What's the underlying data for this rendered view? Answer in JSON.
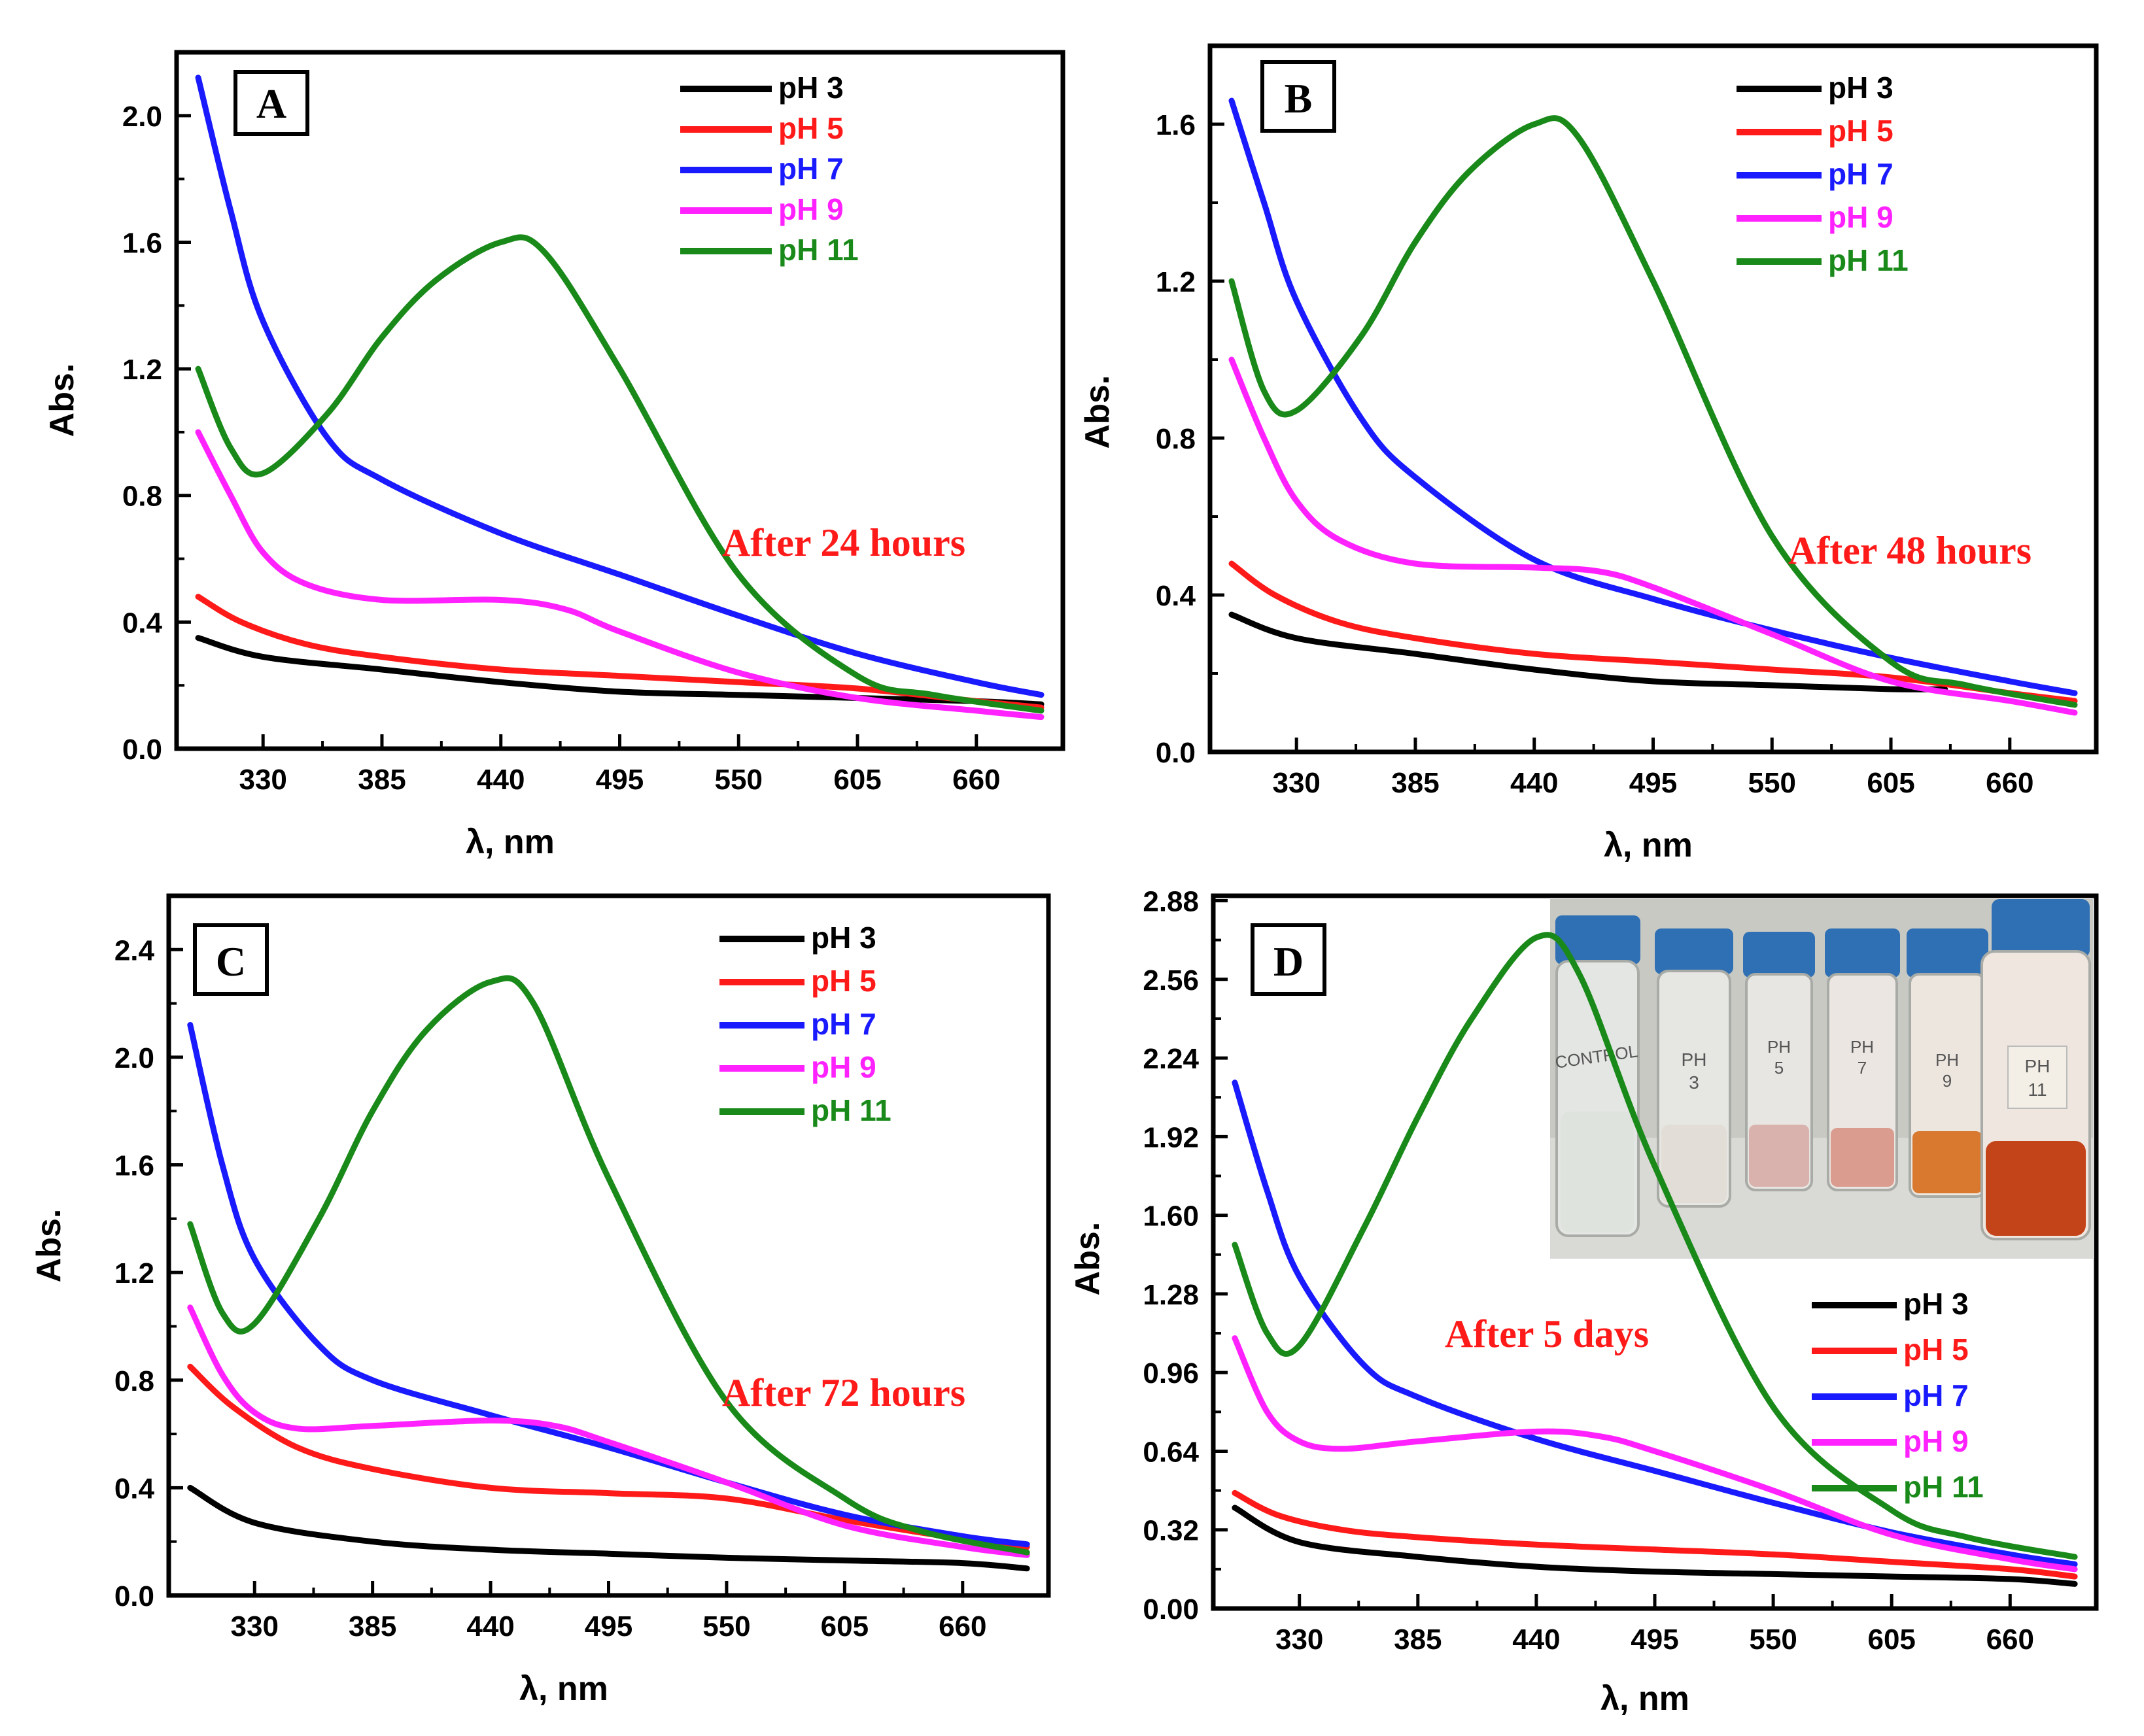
{
  "figure": {
    "series_colors": {
      "pH 3": "#000000",
      "pH 5": "#ff1a1a",
      "pH 7": "#1a1aff",
      "pH 9": "#ff22ff",
      "pH 11": "#198a19"
    },
    "label_red": "#ff1a1a"
  },
  "chart_data": [
    {
      "type": "line",
      "panel_label": "A",
      "annotation": "After 24 hours",
      "xlabel": "λ, nm",
      "ylabel": "Abs.",
      "xlim": [
        290,
        700
      ],
      "ylim": [
        0,
        2.2
      ],
      "xticks": [
        330,
        385,
        440,
        495,
        550,
        605,
        660
      ],
      "yticks": [
        0.0,
        0.4,
        0.8,
        1.2,
        1.6,
        2.0
      ],
      "ytick_labels": [
        "0.0",
        "0.4",
        "0.8",
        "1.2",
        "1.6",
        "2.0"
      ],
      "legend": [
        "pH 3",
        "pH 5",
        "pH 7",
        "pH 9",
        "pH 11"
      ],
      "legend_position": "top-right",
      "series": [
        {
          "name": "pH 3",
          "x": [
            300,
            330,
            385,
            440,
            495,
            550,
            605,
            660,
            690
          ],
          "y": [
            0.35,
            0.29,
            0.25,
            0.21,
            0.18,
            0.17,
            0.16,
            0.15,
            0.14
          ]
        },
        {
          "name": "pH 5",
          "x": [
            300,
            320,
            350,
            385,
            440,
            495,
            550,
            605,
            660,
            690
          ],
          "y": [
            0.48,
            0.4,
            0.33,
            0.29,
            0.25,
            0.23,
            0.21,
            0.19,
            0.15,
            0.13
          ]
        },
        {
          "name": "pH 7",
          "x": [
            300,
            315,
            330,
            360,
            385,
            440,
            495,
            550,
            605,
            660,
            690
          ],
          "y": [
            2.12,
            1.7,
            1.35,
            0.98,
            0.85,
            0.68,
            0.55,
            0.42,
            0.3,
            0.21,
            0.17
          ]
        },
        {
          "name": "pH 9",
          "x": [
            300,
            315,
            330,
            350,
            385,
            440,
            470,
            495,
            550,
            605,
            660,
            690
          ],
          "y": [
            1.0,
            0.8,
            0.62,
            0.52,
            0.47,
            0.47,
            0.44,
            0.37,
            0.24,
            0.16,
            0.12,
            0.1
          ]
        },
        {
          "name": "pH 11",
          "x": [
            300,
            315,
            330,
            360,
            385,
            410,
            440,
            460,
            495,
            550,
            605,
            640,
            690
          ],
          "y": [
            1.2,
            0.95,
            0.87,
            1.06,
            1.3,
            1.48,
            1.6,
            1.57,
            1.2,
            0.55,
            0.23,
            0.17,
            0.12
          ]
        }
      ]
    },
    {
      "type": "line",
      "panel_label": "B",
      "annotation": "After 48 hours",
      "xlabel": "λ, nm",
      "ylabel": "Abs.",
      "xlim": [
        290,
        700
      ],
      "ylim": [
        0,
        1.8
      ],
      "xticks": [
        330,
        385,
        440,
        495,
        550,
        605,
        660
      ],
      "yticks": [
        0.0,
        0.4,
        0.8,
        1.2,
        1.6
      ],
      "ytick_labels": [
        "0.0",
        "0.4",
        "0.8",
        "1.2",
        "1.6"
      ],
      "legend": [
        "pH 3",
        "pH 5",
        "pH 7",
        "pH 9",
        "pH 11"
      ],
      "legend_position": "top-right",
      "series": [
        {
          "name": "pH 3",
          "x": [
            300,
            330,
            385,
            440,
            495,
            550,
            605,
            630
          ],
          "y": [
            0.35,
            0.29,
            0.25,
            0.21,
            0.18,
            0.17,
            0.16,
            0.16
          ]
        },
        {
          "name": "pH 5",
          "x": [
            300,
            320,
            350,
            385,
            440,
            495,
            550,
            605,
            660,
            690
          ],
          "y": [
            0.48,
            0.4,
            0.33,
            0.29,
            0.25,
            0.23,
            0.21,
            0.19,
            0.15,
            0.13
          ]
        },
        {
          "name": "pH 7",
          "x": [
            300,
            315,
            330,
            360,
            385,
            440,
            495,
            550,
            605,
            660,
            690
          ],
          "y": [
            1.66,
            1.4,
            1.15,
            0.85,
            0.7,
            0.49,
            0.39,
            0.31,
            0.24,
            0.18,
            0.15
          ]
        },
        {
          "name": "pH 9",
          "x": [
            300,
            315,
            330,
            350,
            385,
            440,
            470,
            495,
            550,
            605,
            660,
            690
          ],
          "y": [
            1.0,
            0.8,
            0.64,
            0.54,
            0.48,
            0.47,
            0.46,
            0.42,
            0.3,
            0.18,
            0.13,
            0.1
          ]
        },
        {
          "name": "pH 11",
          "x": [
            300,
            315,
            330,
            360,
            385,
            410,
            440,
            460,
            495,
            550,
            605,
            640,
            690
          ],
          "y": [
            1.2,
            0.92,
            0.87,
            1.06,
            1.3,
            1.48,
            1.6,
            1.57,
            1.2,
            0.55,
            0.23,
            0.17,
            0.12
          ]
        }
      ]
    },
    {
      "type": "line",
      "panel_label": "C",
      "annotation": "After 72 hours",
      "xlabel": "λ, nm",
      "ylabel": "Abs.",
      "xlim": [
        290,
        700
      ],
      "ylim": [
        0,
        2.6
      ],
      "xticks": [
        330,
        385,
        440,
        495,
        550,
        605,
        660
      ],
      "yticks": [
        0.0,
        0.4,
        0.8,
        1.2,
        1.6,
        2.0,
        2.4
      ],
      "ytick_labels": [
        "0.0",
        "0.4",
        "0.8",
        "1.2",
        "1.6",
        "2.0",
        "2.4"
      ],
      "legend": [
        "pH 3",
        "pH 5",
        "pH 7",
        "pH 9",
        "pH 11"
      ],
      "legend_position": "top-right",
      "series": [
        {
          "name": "pH 3",
          "x": [
            300,
            330,
            385,
            440,
            495,
            550,
            605,
            660,
            690
          ],
          "y": [
            0.4,
            0.27,
            0.2,
            0.17,
            0.155,
            0.14,
            0.13,
            0.12,
            0.1
          ]
        },
        {
          "name": "pH 5",
          "x": [
            300,
            320,
            350,
            385,
            440,
            495,
            550,
            605,
            660,
            690
          ],
          "y": [
            0.85,
            0.7,
            0.55,
            0.47,
            0.4,
            0.38,
            0.36,
            0.28,
            0.21,
            0.18
          ]
        },
        {
          "name": "pH 7",
          "x": [
            300,
            315,
            330,
            360,
            385,
            440,
            495,
            550,
            605,
            660,
            690
          ],
          "y": [
            2.12,
            1.6,
            1.25,
            0.93,
            0.8,
            0.67,
            0.55,
            0.42,
            0.3,
            0.22,
            0.19
          ]
        },
        {
          "name": "pH 9",
          "x": [
            300,
            315,
            330,
            350,
            385,
            440,
            470,
            495,
            550,
            605,
            660,
            690
          ],
          "y": [
            1.07,
            0.82,
            0.68,
            0.62,
            0.63,
            0.65,
            0.63,
            0.57,
            0.42,
            0.26,
            0.18,
            0.15
          ]
        },
        {
          "name": "pH 11",
          "x": [
            300,
            315,
            330,
            360,
            385,
            410,
            440,
            460,
            495,
            550,
            605,
            640,
            690
          ],
          "y": [
            1.38,
            1.05,
            1.01,
            1.4,
            1.8,
            2.1,
            2.28,
            2.2,
            1.55,
            0.72,
            0.36,
            0.24,
            0.16
          ]
        }
      ]
    },
    {
      "type": "line",
      "panel_label": "D",
      "annotation": "After 5 days",
      "xlabel": "λ, nm",
      "ylabel": "Abs.",
      "xlim": [
        290,
        700
      ],
      "ylim": [
        0,
        2.9
      ],
      "xticks": [
        330,
        385,
        440,
        495,
        550,
        605,
        660
      ],
      "yticks": [
        0.0,
        0.32,
        0.64,
        0.96,
        1.28,
        1.6,
        1.92,
        2.24,
        2.56,
        2.88
      ],
      "ytick_labels": [
        "0.00",
        "0.32",
        "0.64",
        "0.96",
        "1.28",
        "1.60",
        "1.92",
        "2.24",
        "2.56",
        "2.88"
      ],
      "legend": [
        "pH 3",
        "pH 5",
        "pH 7",
        "pH 9",
        "pH 11"
      ],
      "legend_position": "bottom-right",
      "series": [
        {
          "name": "pH 3",
          "x": [
            300,
            330,
            385,
            440,
            495,
            550,
            605,
            660,
            690
          ],
          "y": [
            0.41,
            0.27,
            0.21,
            0.17,
            0.15,
            0.14,
            0.13,
            0.12,
            0.1
          ]
        },
        {
          "name": "pH 5",
          "x": [
            300,
            320,
            350,
            385,
            440,
            495,
            550,
            605,
            660,
            690
          ],
          "y": [
            0.47,
            0.38,
            0.32,
            0.29,
            0.26,
            0.24,
            0.22,
            0.19,
            0.16,
            0.13
          ]
        },
        {
          "name": "pH 7",
          "x": [
            300,
            315,
            330,
            360,
            385,
            440,
            495,
            550,
            605,
            660,
            690
          ],
          "y": [
            2.14,
            1.7,
            1.35,
            0.99,
            0.86,
            0.69,
            0.56,
            0.43,
            0.31,
            0.22,
            0.18
          ]
        },
        {
          "name": "pH 9",
          "x": [
            300,
            315,
            330,
            350,
            385,
            440,
            470,
            495,
            550,
            605,
            660,
            690
          ],
          "y": [
            1.1,
            0.8,
            0.68,
            0.65,
            0.68,
            0.72,
            0.7,
            0.64,
            0.48,
            0.3,
            0.2,
            0.16
          ]
        },
        {
          "name": "pH 11",
          "x": [
            300,
            315,
            330,
            360,
            385,
            410,
            440,
            460,
            495,
            550,
            605,
            640,
            690
          ],
          "y": [
            1.48,
            1.12,
            1.07,
            1.55,
            2.0,
            2.4,
            2.73,
            2.58,
            1.8,
            0.82,
            0.4,
            0.29,
            0.21
          ]
        }
      ]
    }
  ]
}
